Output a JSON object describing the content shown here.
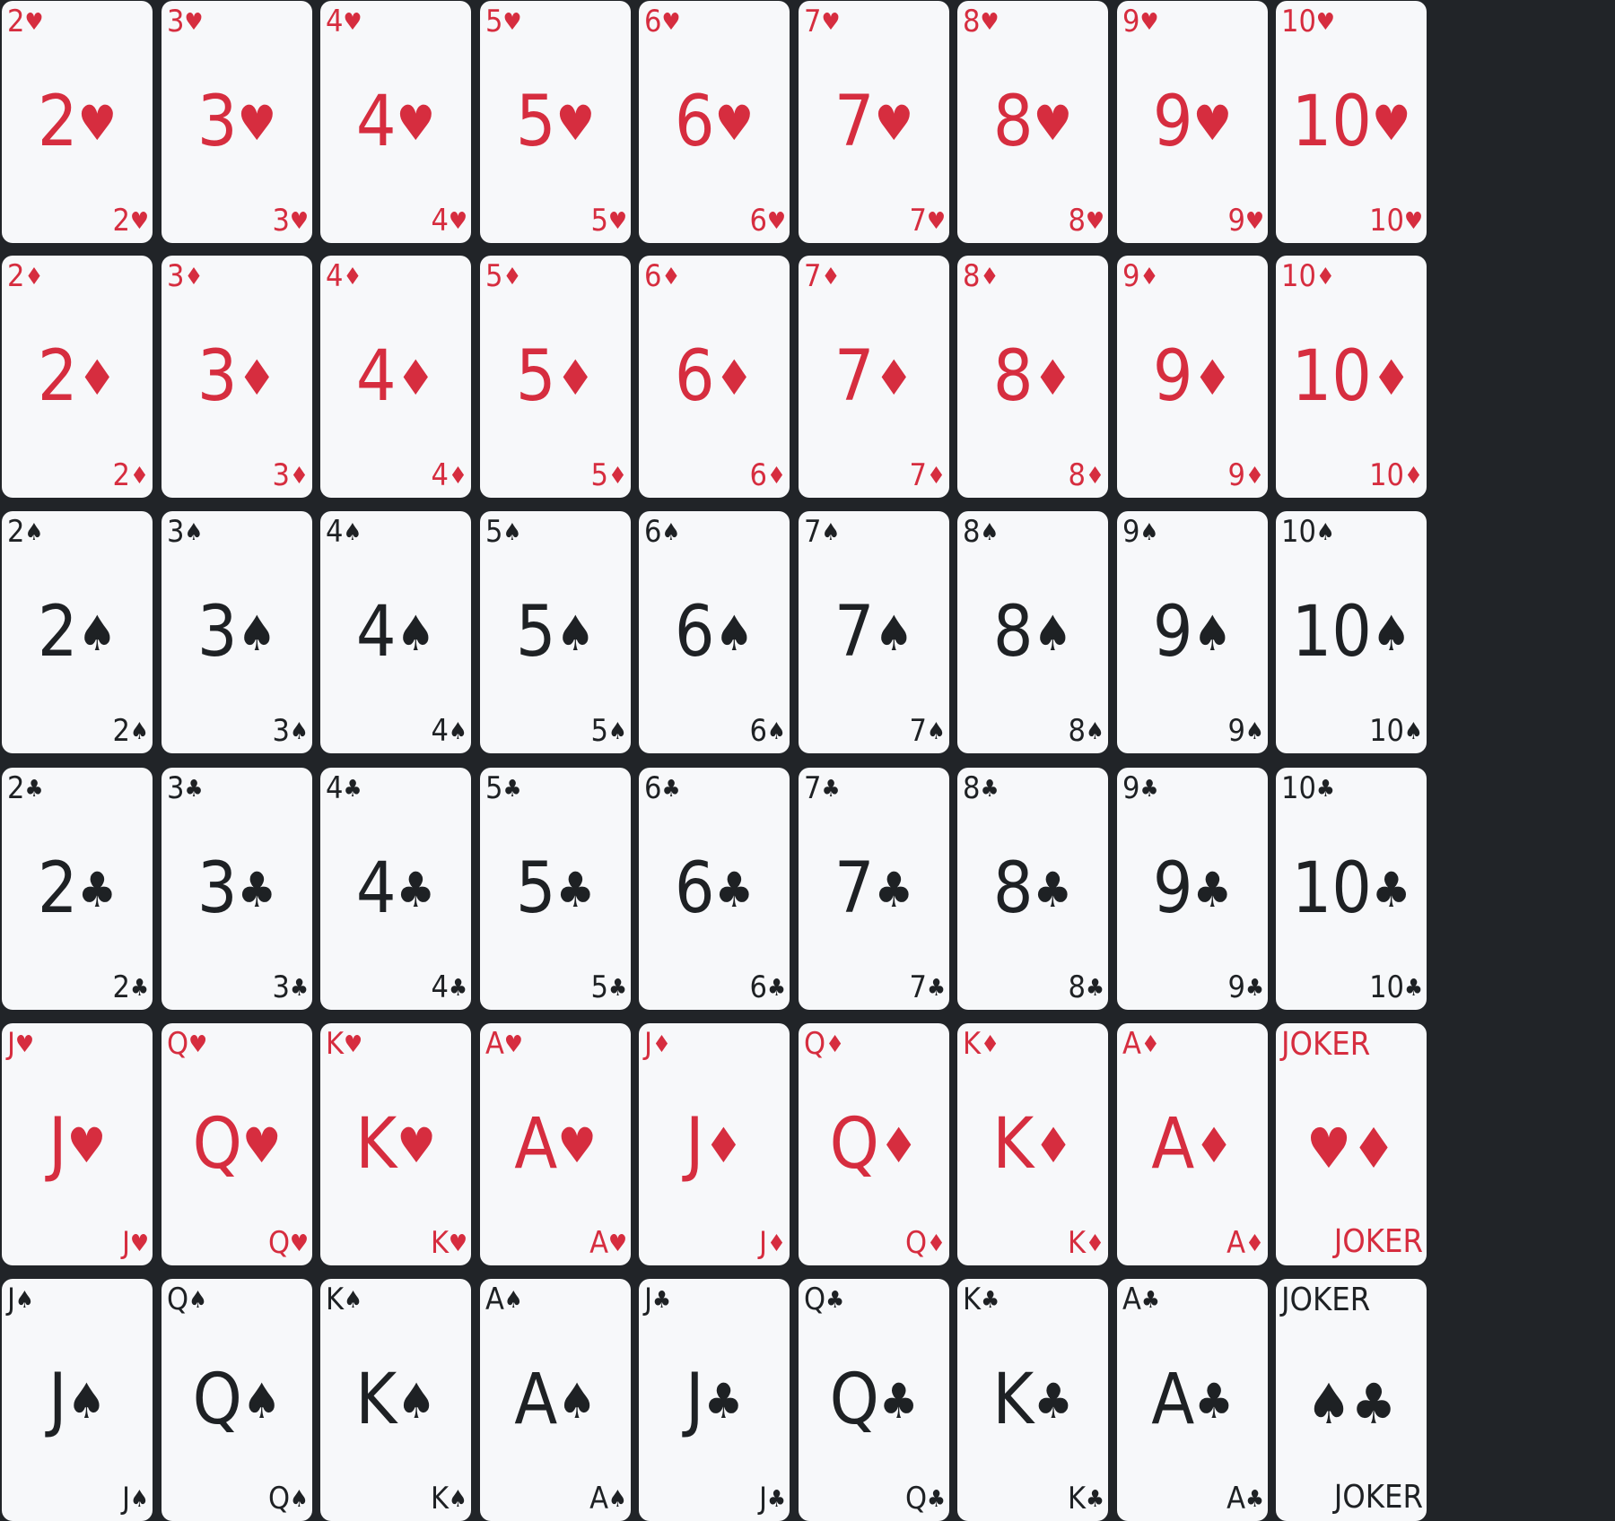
{
  "suit_colors": {
    "red": "#d62d3f",
    "black": "#1e2124"
  },
  "background_color": "#212428",
  "rows": [
    {
      "cards": [
        {
          "rank": "2",
          "suit": "♥",
          "color": "red"
        },
        {
          "rank": "3",
          "suit": "♥",
          "color": "red"
        },
        {
          "rank": "4",
          "suit": "♥",
          "color": "red"
        },
        {
          "rank": "5",
          "suit": "♥",
          "color": "red"
        },
        {
          "rank": "6",
          "suit": "♥",
          "color": "red"
        },
        {
          "rank": "7",
          "suit": "♥",
          "color": "red"
        },
        {
          "rank": "8",
          "suit": "♥",
          "color": "red"
        },
        {
          "rank": "9",
          "suit": "♥",
          "color": "red"
        },
        {
          "rank": "10",
          "suit": "♥",
          "color": "red"
        }
      ]
    },
    {
      "cards": [
        {
          "rank": "2",
          "suit": "♦",
          "color": "red"
        },
        {
          "rank": "3",
          "suit": "♦",
          "color": "red"
        },
        {
          "rank": "4",
          "suit": "♦",
          "color": "red"
        },
        {
          "rank": "5",
          "suit": "♦",
          "color": "red"
        },
        {
          "rank": "6",
          "suit": "♦",
          "color": "red"
        },
        {
          "rank": "7",
          "suit": "♦",
          "color": "red"
        },
        {
          "rank": "8",
          "suit": "♦",
          "color": "red"
        },
        {
          "rank": "9",
          "suit": "♦",
          "color": "red"
        },
        {
          "rank": "10",
          "suit": "♦",
          "color": "red"
        }
      ]
    },
    {
      "cards": [
        {
          "rank": "2",
          "suit": "♠",
          "color": "black"
        },
        {
          "rank": "3",
          "suit": "♠",
          "color": "black"
        },
        {
          "rank": "4",
          "suit": "♠",
          "color": "black"
        },
        {
          "rank": "5",
          "suit": "♠",
          "color": "black"
        },
        {
          "rank": "6",
          "suit": "♠",
          "color": "black"
        },
        {
          "rank": "7",
          "suit": "♠",
          "color": "black"
        },
        {
          "rank": "8",
          "suit": "♠",
          "color": "black"
        },
        {
          "rank": "9",
          "suit": "♠",
          "color": "black"
        },
        {
          "rank": "10",
          "suit": "♠",
          "color": "black"
        }
      ]
    },
    {
      "cards": [
        {
          "rank": "2",
          "suit": "♣",
          "color": "black"
        },
        {
          "rank": "3",
          "suit": "♣",
          "color": "black"
        },
        {
          "rank": "4",
          "suit": "♣",
          "color": "black"
        },
        {
          "rank": "5",
          "suit": "♣",
          "color": "black"
        },
        {
          "rank": "6",
          "suit": "♣",
          "color": "black"
        },
        {
          "rank": "7",
          "suit": "♣",
          "color": "black"
        },
        {
          "rank": "8",
          "suit": "♣",
          "color": "black"
        },
        {
          "rank": "9",
          "suit": "♣",
          "color": "black"
        },
        {
          "rank": "10",
          "suit": "♣",
          "color": "black"
        }
      ]
    },
    {
      "cards": [
        {
          "rank": "J",
          "suit": "♥",
          "color": "red"
        },
        {
          "rank": "Q",
          "suit": "♥",
          "color": "red"
        },
        {
          "rank": "K",
          "suit": "♥",
          "color": "red"
        },
        {
          "rank": "A",
          "suit": "♥",
          "color": "red"
        },
        {
          "rank": "J",
          "suit": "♦",
          "color": "red"
        },
        {
          "rank": "Q",
          "suit": "♦",
          "color": "red"
        },
        {
          "rank": "K",
          "suit": "♦",
          "color": "red"
        },
        {
          "rank": "A",
          "suit": "♦",
          "color": "red"
        },
        {
          "joker": true,
          "label": "JOKER",
          "center": "♥♦",
          "color": "red"
        }
      ]
    },
    {
      "cards": [
        {
          "rank": "J",
          "suit": "♠",
          "color": "black"
        },
        {
          "rank": "Q",
          "suit": "♠",
          "color": "black"
        },
        {
          "rank": "K",
          "suit": "♠",
          "color": "black"
        },
        {
          "rank": "A",
          "suit": "♠",
          "color": "black"
        },
        {
          "rank": "J",
          "suit": "♣",
          "color": "black"
        },
        {
          "rank": "Q",
          "suit": "♣",
          "color": "black"
        },
        {
          "rank": "K",
          "suit": "♣",
          "color": "black"
        },
        {
          "rank": "A",
          "suit": "♣",
          "color": "black"
        },
        {
          "joker": true,
          "label": "JOKER",
          "center": "♠♣",
          "color": "black"
        }
      ]
    }
  ]
}
